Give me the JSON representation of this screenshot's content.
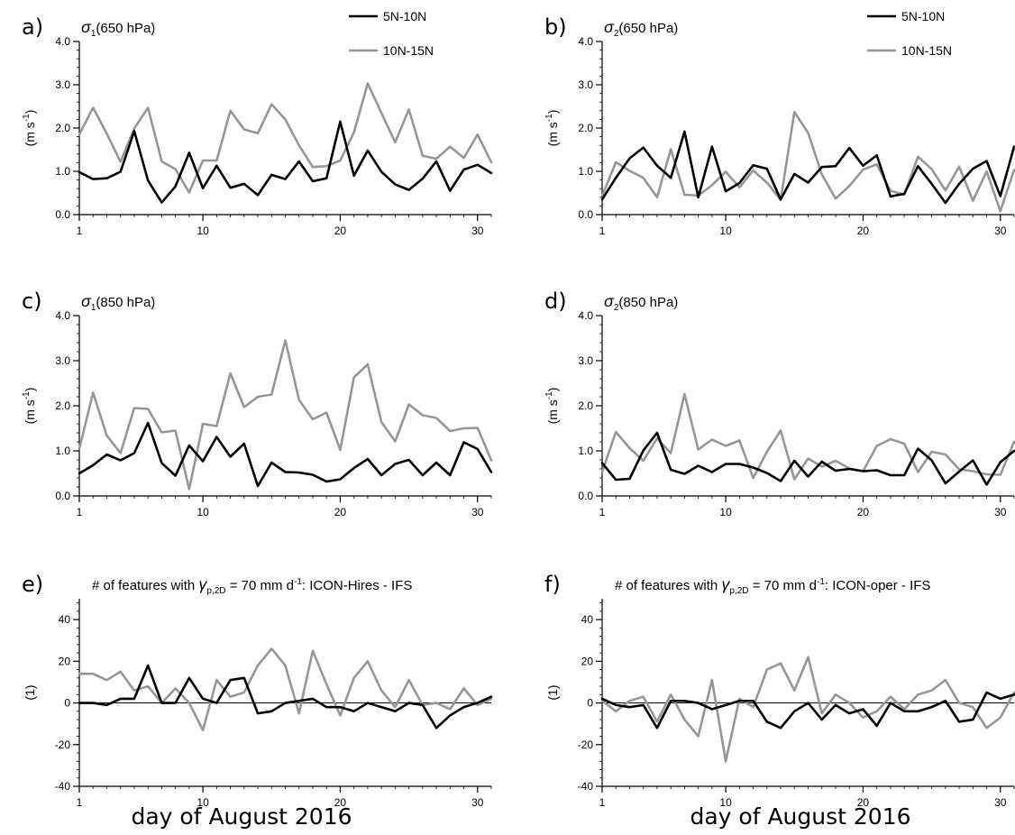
{
  "colors": {
    "black_series": "#000000",
    "grey_series": "#969696",
    "axis": "#000000"
  },
  "xlabel": "day of August 2016",
  "chart_data": [
    {
      "id": "a",
      "type": "line",
      "panel_label": "a)",
      "title": {
        "symbol": "σ",
        "sub": "1",
        "text": "(650 hPa)"
      },
      "ylabel": {
        "text": "(m s",
        "sup": "-1",
        "end": ")"
      },
      "ylim": [
        0,
        4
      ],
      "yticks": [
        "0.0",
        "1.0",
        "2.0",
        "3.0",
        "4.0"
      ],
      "ytick_values": [
        0,
        1,
        2,
        3,
        4
      ],
      "xlim": [
        1,
        31
      ],
      "xticks": [
        1,
        10,
        20,
        30
      ],
      "zero_line": false,
      "legend": {
        "position": "top-right",
        "items": [
          "5N-10N",
          "10N-15N"
        ]
      },
      "x": [
        1,
        2,
        3,
        4,
        5,
        6,
        7,
        8,
        9,
        10,
        11,
        12,
        13,
        14,
        15,
        16,
        17,
        18,
        19,
        20,
        21,
        22,
        23,
        24,
        25,
        26,
        27,
        28,
        29,
        30,
        31
      ],
      "series": [
        {
          "name": "5N-10N",
          "color": "#000000",
          "values": [
            0.98,
            0.82,
            0.84,
            0.99,
            1.93,
            0.79,
            0.28,
            0.65,
            1.43,
            0.61,
            1.13,
            0.62,
            0.71,
            0.45,
            0.92,
            0.82,
            1.23,
            0.77,
            0.84,
            2.15,
            0.9,
            1.48,
            0.99,
            0.7,
            0.57,
            0.83,
            1.23,
            0.55,
            1.04,
            1.15,
            0.96
          ]
        },
        {
          "name": "10N-15N",
          "color": "#969696",
          "values": [
            1.85,
            2.47,
            1.87,
            1.22,
            1.99,
            2.47,
            1.23,
            1.05,
            0.51,
            1.25,
            1.25,
            2.4,
            1.97,
            1.88,
            2.55,
            2.2,
            1.6,
            1.1,
            1.12,
            1.25,
            1.9,
            3.03,
            2.35,
            1.67,
            2.43,
            1.36,
            1.29,
            1.57,
            1.31,
            1.85,
            1.21
          ]
        }
      ]
    },
    {
      "id": "b",
      "type": "line",
      "panel_label": "b)",
      "title": {
        "symbol": "σ",
        "sub": "2",
        "text": "(650 hPa)"
      },
      "ylabel": {
        "text": "(m s",
        "sup": "-1",
        "end": ")"
      },
      "ylim": [
        0,
        4
      ],
      "yticks": [
        "0.0",
        "1.0",
        "2.0",
        "3.0",
        "4.0"
      ],
      "ytick_values": [
        0,
        1,
        2,
        3,
        4
      ],
      "xlim": [
        1,
        31
      ],
      "xticks": [
        1,
        10,
        20,
        30
      ],
      "zero_line": false,
      "legend": {
        "position": "top-right",
        "items": [
          "5N-10N",
          "10N-15N"
        ]
      },
      "x": [
        1,
        2,
        3,
        4,
        5,
        6,
        7,
        8,
        9,
        10,
        11,
        12,
        13,
        14,
        15,
        16,
        17,
        18,
        19,
        20,
        21,
        22,
        23,
        24,
        25,
        26,
        27,
        28,
        29,
        30,
        31
      ],
      "series": [
        {
          "name": "5N-10N",
          "color": "#000000",
          "values": [
            0.35,
            0.85,
            1.3,
            1.55,
            1.13,
            0.85,
            1.92,
            0.4,
            1.57,
            0.54,
            0.73,
            1.14,
            1.06,
            0.35,
            0.94,
            0.74,
            1.1,
            1.12,
            1.54,
            1.13,
            1.37,
            0.42,
            0.48,
            1.12,
            0.71,
            0.27,
            0.71,
            1.06,
            1.24,
            0.43,
            1.57
          ]
        },
        {
          "name": "10N-15N",
          "color": "#969696",
          "values": [
            0.43,
            1.21,
            1.01,
            0.85,
            0.4,
            1.51,
            0.46,
            0.44,
            0.68,
            0.99,
            0.63,
            1.02,
            0.74,
            0.34,
            2.37,
            1.89,
            0.93,
            0.37,
            0.66,
            1.04,
            1.16,
            0.55,
            0.46,
            1.34,
            1.05,
            0.56,
            1.11,
            0.32,
            1.0,
            0.08,
            1.03
          ]
        }
      ]
    },
    {
      "id": "c",
      "type": "line",
      "panel_label": "c)",
      "title": {
        "symbol": "σ",
        "sub": "1",
        "text": "(850 hPa)"
      },
      "ylabel": {
        "text": "(m s",
        "sup": "-1",
        "end": ")"
      },
      "ylim": [
        0,
        4
      ],
      "yticks": [
        "0.0",
        "1.0",
        "2.0",
        "3.0",
        "4.0"
      ],
      "ytick_values": [
        0,
        1,
        2,
        3,
        4
      ],
      "xlim": [
        1,
        31
      ],
      "xticks": [
        1,
        10,
        20,
        30
      ],
      "zero_line": false,
      "legend": null,
      "x": [
        1,
        2,
        3,
        4,
        5,
        6,
        7,
        8,
        9,
        10,
        11,
        12,
        13,
        14,
        15,
        16,
        17,
        18,
        19,
        20,
        21,
        22,
        23,
        24,
        25,
        26,
        27,
        28,
        29,
        30,
        31
      ],
      "series": [
        {
          "name": "5N-10N",
          "color": "#000000",
          "values": [
            0.5,
            0.68,
            0.92,
            0.79,
            0.95,
            1.62,
            0.73,
            0.45,
            1.12,
            0.77,
            1.31,
            0.87,
            1.16,
            0.22,
            0.74,
            0.53,
            0.52,
            0.47,
            0.32,
            0.37,
            0.62,
            0.82,
            0.46,
            0.71,
            0.8,
            0.46,
            0.74,
            0.46,
            1.19,
            1.04,
            0.53
          ]
        },
        {
          "name": "10N-15N",
          "color": "#969696",
          "values": [
            1.05,
            2.29,
            1.34,
            0.95,
            1.95,
            1.93,
            1.41,
            1.45,
            0.15,
            1.6,
            1.55,
            2.72,
            1.97,
            2.2,
            2.25,
            3.45,
            2.13,
            1.7,
            1.85,
            1.02,
            2.63,
            2.92,
            1.64,
            1.21,
            2.03,
            1.79,
            1.73,
            1.44,
            1.5,
            1.51,
            0.79
          ]
        }
      ]
    },
    {
      "id": "d",
      "type": "line",
      "panel_label": "d)",
      "title": {
        "symbol": "σ",
        "sub": "2",
        "text": "(850 hPa)"
      },
      "ylabel": {
        "text": "(m s",
        "sup": "-1",
        "end": ")"
      },
      "ylim": [
        0,
        4
      ],
      "yticks": [
        "0.0",
        "1.0",
        "2.0",
        "3.0",
        "4.0"
      ],
      "ytick_values": [
        0,
        1,
        2,
        3,
        4
      ],
      "xlim": [
        1,
        31
      ],
      "xticks": [
        1,
        10,
        20,
        30
      ],
      "zero_line": false,
      "legend": null,
      "x": [
        1,
        2,
        3,
        4,
        5,
        6,
        7,
        8,
        9,
        10,
        11,
        12,
        13,
        14,
        15,
        16,
        17,
        18,
        19,
        20,
        21,
        22,
        23,
        24,
        25,
        26,
        27,
        28,
        29,
        30,
        31
      ],
      "series": [
        {
          "name": "5N-10N",
          "color": "#000000",
          "values": [
            0.73,
            0.36,
            0.38,
            1.01,
            1.4,
            0.58,
            0.49,
            0.67,
            0.53,
            0.71,
            0.71,
            0.63,
            0.51,
            0.33,
            0.78,
            0.43,
            0.76,
            0.56,
            0.6,
            0.55,
            0.57,
            0.46,
            0.46,
            1.05,
            0.79,
            0.28,
            0.54,
            0.79,
            0.25,
            0.75,
            1.0
          ]
        },
        {
          "name": "10N-15N",
          "color": "#969696",
          "values": [
            0.53,
            1.42,
            1.06,
            0.78,
            1.28,
            0.95,
            2.26,
            1.03,
            1.25,
            1.11,
            1.23,
            0.4,
            0.98,
            1.45,
            0.37,
            0.83,
            0.65,
            0.78,
            0.61,
            0.55,
            1.11,
            1.26,
            1.16,
            0.53,
            0.98,
            0.92,
            0.59,
            0.55,
            0.48,
            0.47,
            1.2
          ]
        }
      ]
    },
    {
      "id": "e",
      "type": "line",
      "panel_label": "e)",
      "title": {
        "prefix": "# of features with ",
        "symbol": "γ",
        "sub": "p,2D",
        "text": " = 70 mm d",
        "sup": "-1",
        "suffix": ": ICON-Hires - IFS"
      },
      "ylabel": {
        "text": "(1)"
      },
      "ylim": [
        -40,
        50
      ],
      "yticks": [
        "-40",
        "-20",
        "0",
        "20",
        "40"
      ],
      "ytick_values": [
        -40,
        -20,
        0,
        20,
        40
      ],
      "xlim": [
        1,
        31
      ],
      "xticks": [
        1,
        10,
        20,
        30
      ],
      "zero_line": true,
      "legend": null,
      "x": [
        1,
        2,
        3,
        4,
        5,
        6,
        7,
        8,
        9,
        10,
        11,
        12,
        13,
        14,
        15,
        16,
        17,
        18,
        19,
        20,
        21,
        22,
        23,
        24,
        25,
        26,
        27,
        28,
        29,
        30,
        31
      ],
      "series": [
        {
          "name": "5N-10N",
          "color": "#000000",
          "values": [
            0,
            0,
            -1,
            2,
            2,
            18,
            0,
            0,
            12,
            2,
            0,
            11,
            12,
            -5,
            -4,
            0,
            1,
            2,
            -2,
            -2,
            -4,
            0,
            -2,
            -4,
            0,
            -1,
            -12,
            -6,
            -2,
            0,
            3
          ]
        },
        {
          "name": "10N-15N",
          "color": "#969696",
          "values": [
            14,
            14,
            11,
            15,
            6,
            8,
            0,
            7,
            0,
            -13,
            11,
            3,
            5,
            18,
            26,
            18,
            -5,
            25,
            9,
            -6,
            12,
            20,
            6,
            -2,
            11,
            -1,
            0,
            -3,
            7,
            -1,
            2
          ]
        }
      ]
    },
    {
      "id": "f",
      "type": "line",
      "panel_label": "f)",
      "title": {
        "prefix": "# of features with ",
        "symbol": "γ",
        "sub": "p,2D",
        "text": " = 70 mm d",
        "sup": "-1",
        "suffix": ": ICON-oper - IFS"
      },
      "ylabel": {
        "text": "(1)"
      },
      "ylim": [
        -40,
        50
      ],
      "yticks": [
        "-40",
        "-20",
        "0",
        "20",
        "40"
      ],
      "ytick_values": [
        -40,
        -20,
        0,
        20,
        40
      ],
      "xlim": [
        1,
        31
      ],
      "xticks": [
        1,
        10,
        20,
        30
      ],
      "zero_line": true,
      "legend": null,
      "x": [
        1,
        2,
        3,
        4,
        5,
        6,
        7,
        8,
        9,
        10,
        11,
        12,
        13,
        14,
        15,
        16,
        17,
        18,
        19,
        20,
        21,
        22,
        23,
        24,
        25,
        26,
        27,
        28,
        29,
        30,
        31
      ],
      "series": [
        {
          "name": "5N-10N",
          "color": "#000000",
          "values": [
            2,
            -1,
            -2,
            -1,
            -12,
            1,
            1,
            0,
            -3,
            -1,
            1,
            1,
            -9,
            -12,
            -4,
            0,
            -8,
            -1,
            -5,
            -3,
            -11,
            0,
            -4,
            -4,
            -2,
            1,
            -9,
            -8,
            5,
            2,
            4
          ]
        },
        {
          "name": "10N-15N",
          "color": "#969696",
          "values": [
            1,
            -4,
            1,
            3,
            -9,
            4,
            -8,
            -16,
            11,
            -28,
            2,
            -2,
            16,
            19,
            6,
            22,
            -5,
            4,
            0,
            -7,
            -4,
            3,
            -3,
            4,
            6,
            11,
            0,
            -2,
            -12,
            -7,
            5
          ]
        }
      ]
    }
  ]
}
